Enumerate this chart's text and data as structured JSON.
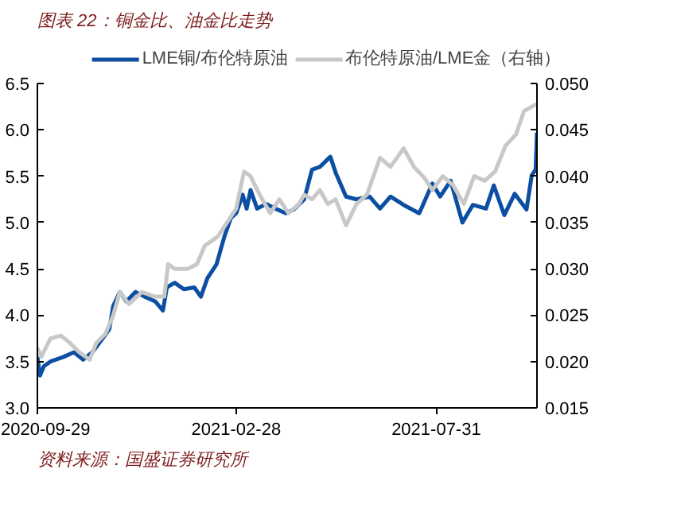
{
  "chart_data": {
    "type": "line",
    "title": "图表 22：铜金比、油金比走势",
    "annotations": [
      "资料来源：国盛证券研究所"
    ],
    "xlim": [
      "2020-09-29",
      "2021-10-16"
    ],
    "xticks": [
      "2020-09-29",
      "2021-02-28",
      "2021-07-31"
    ],
    "ylim": [
      3.0,
      6.5
    ],
    "yticks": [
      {
        "value": 3.0,
        "label": "3.0"
      },
      {
        "value": 3.5,
        "label": "3.5"
      },
      {
        "value": 4.0,
        "label": "4.0"
      },
      {
        "value": 4.5,
        "label": "4.5"
      },
      {
        "value": 5.0,
        "label": "5.0"
      },
      {
        "value": 5.5,
        "label": "5.5"
      },
      {
        "value": 6.0,
        "label": "6.0"
      },
      {
        "value": 6.5,
        "label": "6.5"
      }
    ],
    "y2lim": [
      0.015,
      0.05
    ],
    "y2ticks": [
      {
        "value": 0.015,
        "label": "0.015"
      },
      {
        "value": 0.02,
        "label": "0.020"
      },
      {
        "value": 0.025,
        "label": "0.025"
      },
      {
        "value": 0.03,
        "label": "0.030"
      },
      {
        "value": 0.035,
        "label": "0.035"
      },
      {
        "value": 0.04,
        "label": "0.040"
      },
      {
        "value": 0.045,
        "label": "0.045"
      },
      {
        "value": 0.05,
        "label": "0.050"
      }
    ],
    "grid": false,
    "legend": "top",
    "series": [
      {
        "name": "LME铜/布伦特原油",
        "color": "#0b4ea2",
        "x": [
          "2020-09-29",
          "2020-10-01",
          "2020-10-04",
          "2020-10-09",
          "2020-10-19",
          "2020-10-27",
          "2020-11-03",
          "2020-11-10",
          "2020-11-18",
          "2020-11-23",
          "2020-11-26",
          "2020-12-01",
          "2020-12-06",
          "2020-12-13",
          "2020-12-20",
          "2020-12-28",
          "2021-01-03",
          "2021-01-06",
          "2021-01-12",
          "2021-01-19",
          "2021-01-27",
          "2021-02-01",
          "2021-02-06",
          "2021-02-13",
          "2021-02-19",
          "2021-02-24",
          "2021-02-28",
          "2021-03-05",
          "2021-03-08",
          "2021-03-11",
          "2021-03-16",
          "2021-03-23",
          "2021-03-30",
          "2021-04-07",
          "2021-04-13",
          "2021-04-21",
          "2021-04-27",
          "2021-05-03",
          "2021-05-11",
          "2021-05-15",
          "2021-05-23",
          "2021-05-31",
          "2021-06-10",
          "2021-06-18",
          "2021-06-26",
          "2021-07-06",
          "2021-07-18",
          "2021-07-28",
          "2021-08-03",
          "2021-08-11",
          "2021-08-20",
          "2021-08-28",
          "2021-09-07",
          "2021-09-13",
          "2021-09-21",
          "2021-09-29",
          "2021-10-08",
          "2021-10-12",
          "2021-10-15",
          "2021-10-16"
        ],
        "values": [
          3.55,
          3.35,
          3.45,
          3.5,
          3.55,
          3.6,
          3.52,
          3.6,
          3.75,
          3.85,
          4.1,
          4.25,
          4.15,
          4.25,
          4.2,
          4.15,
          4.05,
          4.3,
          4.35,
          4.28,
          4.3,
          4.2,
          4.4,
          4.55,
          4.85,
          5.05,
          5.1,
          5.3,
          5.15,
          5.35,
          5.15,
          5.2,
          5.15,
          5.1,
          5.14,
          5.25,
          5.57,
          5.6,
          5.71,
          5.54,
          5.28,
          5.25,
          5.28,
          5.15,
          5.28,
          5.19,
          5.1,
          5.42,
          5.28,
          5.45,
          5.0,
          5.19,
          5.15,
          5.4,
          5.08,
          5.31,
          5.14,
          5.51,
          5.57,
          5.97
        ]
      },
      {
        "name": "布伦特原油/LME金（右轴）",
        "color": "#c8c8c8",
        "axis": "y2",
        "x": [
          "2020-09-29",
          "2020-10-02",
          "2020-10-09",
          "2020-10-17",
          "2020-10-24",
          "2020-10-31",
          "2020-11-08",
          "2020-11-13",
          "2020-11-20",
          "2020-11-26",
          "2020-12-01",
          "2020-12-08",
          "2020-12-18",
          "2020-12-28",
          "2021-01-04",
          "2021-01-07",
          "2021-01-12",
          "2021-01-22",
          "2021-01-29",
          "2021-02-04",
          "2021-02-14",
          "2021-02-21",
          "2021-02-28",
          "2021-03-06",
          "2021-03-11",
          "2021-03-18",
          "2021-03-26",
          "2021-04-02",
          "2021-04-09",
          "2021-04-17",
          "2021-04-21",
          "2021-04-27",
          "2021-05-03",
          "2021-05-09",
          "2021-05-15",
          "2021-05-23",
          "2021-05-31",
          "2021-06-08",
          "2021-06-18",
          "2021-06-26",
          "2021-07-06",
          "2021-07-14",
          "2021-07-22",
          "2021-07-28",
          "2021-08-05",
          "2021-08-13",
          "2021-08-21",
          "2021-08-29",
          "2021-09-06",
          "2021-09-14",
          "2021-09-22",
          "2021-09-30",
          "2021-10-06",
          "2021-10-12",
          "2021-10-16"
        ],
        "values": [
          0.0215,
          0.0205,
          0.0225,
          0.0228,
          0.022,
          0.021,
          0.0202,
          0.022,
          0.023,
          0.025,
          0.0275,
          0.0262,
          0.0275,
          0.027,
          0.027,
          0.0305,
          0.03,
          0.03,
          0.0305,
          0.0325,
          0.0335,
          0.035,
          0.0365,
          0.0405,
          0.04,
          0.038,
          0.036,
          0.0375,
          0.036,
          0.037,
          0.038,
          0.0375,
          0.0385,
          0.037,
          0.0375,
          0.0347,
          0.037,
          0.038,
          0.042,
          0.041,
          0.043,
          0.041,
          0.0398,
          0.0385,
          0.04,
          0.039,
          0.037,
          0.04,
          0.0395,
          0.0405,
          0.0433,
          0.0445,
          0.047,
          0.0475,
          0.0478
        ]
      }
    ]
  }
}
